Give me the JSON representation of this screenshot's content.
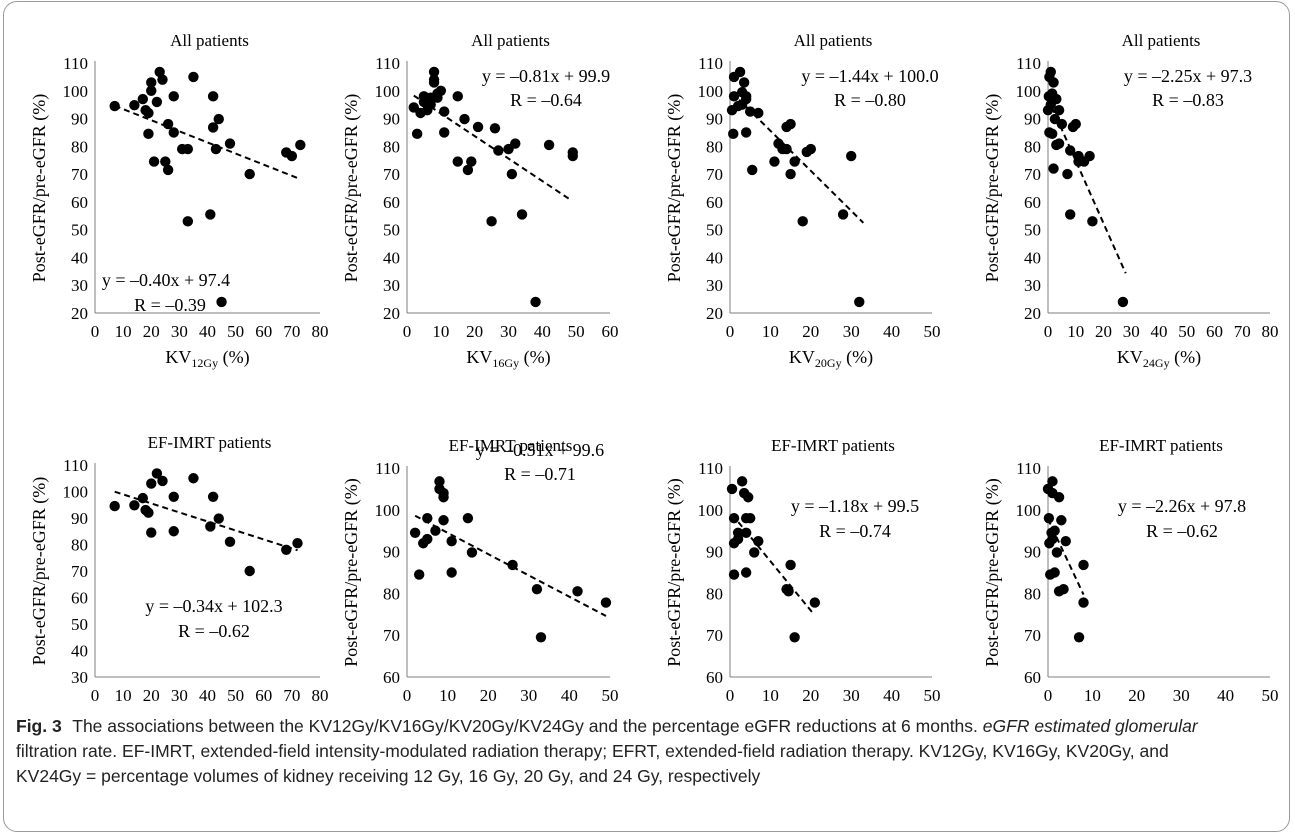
{
  "chart_data": [
    {
      "type": "scatter",
      "title": "All patients",
      "xlabel": "KV",
      "xlabel_sub": "12Gy",
      "xlabel_suffix": " (%)",
      "ylabel": "Post-eGFR/pre-eGFR (%)",
      "xlim": [
        0,
        80
      ],
      "ylim": [
        20,
        110
      ],
      "xticks": [
        0,
        10,
        20,
        30,
        40,
        50,
        60,
        70,
        80
      ],
      "yticks": [
        20,
        30,
        40,
        50,
        60,
        70,
        80,
        90,
        100,
        110
      ],
      "equation": "y = –0.40x + 97.4",
      "r_label": "R = –0.39",
      "trend": {
        "slope": -0.4,
        "intercept": 97.4,
        "x_from": 7,
        "x_to": 73
      },
      "points": [
        [
          7,
          94.5
        ],
        [
          14,
          94.8
        ],
        [
          17,
          97
        ],
        [
          18,
          93
        ],
        [
          19,
          92
        ],
        [
          19,
          84.5
        ],
        [
          20,
          100
        ],
        [
          20,
          103
        ],
        [
          21,
          74.5
        ],
        [
          22,
          96
        ],
        [
          23,
          106.8
        ],
        [
          24,
          104
        ],
        [
          25,
          74.5
        ],
        [
          26,
          71.5
        ],
        [
          26,
          88
        ],
        [
          28,
          85
        ],
        [
          28,
          98
        ],
        [
          31,
          79
        ],
        [
          33,
          53
        ],
        [
          33,
          79
        ],
        [
          35,
          105
        ],
        [
          41,
          55.5
        ],
        [
          42,
          86.8
        ],
        [
          42,
          98
        ],
        [
          43,
          79
        ],
        [
          44,
          89.8
        ],
        [
          45,
          24
        ],
        [
          48,
          81
        ],
        [
          55,
          70
        ],
        [
          68,
          77.8
        ],
        [
          70,
          76.5
        ],
        [
          73,
          80.5
        ]
      ]
    },
    {
      "type": "scatter",
      "title": "All patients",
      "xlabel": "KV",
      "xlabel_sub": "16Gy",
      "xlabel_suffix": " (%)",
      "ylabel": "Post-eGFR/pre-eGFR (%)",
      "xlim": [
        0,
        60
      ],
      "ylim": [
        20,
        110
      ],
      "xticks": [
        0,
        10,
        20,
        30,
        40,
        50,
        60
      ],
      "yticks": [
        20,
        30,
        40,
        50,
        60,
        70,
        80,
        90,
        100,
        110
      ],
      "equation": "y = –0.81x + 99.9",
      "r_label": "R = –0.64",
      "trend": {
        "slope": -0.81,
        "intercept": 99.9,
        "x_from": 2,
        "x_to": 48
      },
      "points": [
        [
          2,
          94
        ],
        [
          3,
          84.5
        ],
        [
          4,
          92
        ],
        [
          5,
          96
        ],
        [
          5,
          98
        ],
        [
          6,
          93
        ],
        [
          7,
          95
        ],
        [
          7,
          97.5
        ],
        [
          8,
          106.8
        ],
        [
          8,
          104
        ],
        [
          8,
          103
        ],
        [
          9,
          99
        ],
        [
          9,
          97.5
        ],
        [
          10,
          100
        ],
        [
          11,
          92.5
        ],
        [
          11,
          85
        ],
        [
          15,
          98
        ],
        [
          15,
          74.5
        ],
        [
          17,
          89.8
        ],
        [
          18,
          71.5
        ],
        [
          19,
          74.5
        ],
        [
          21,
          87
        ],
        [
          25,
          53
        ],
        [
          26,
          86.5
        ],
        [
          27,
          78.5
        ],
        [
          30,
          79
        ],
        [
          31,
          70
        ],
        [
          32,
          81
        ],
        [
          34,
          55.5
        ],
        [
          38,
          24
        ],
        [
          42,
          80.5
        ],
        [
          49,
          77.8
        ],
        [
          49,
          76.5
        ]
      ]
    },
    {
      "type": "scatter",
      "title": "All patients",
      "xlabel": "KV",
      "xlabel_sub": "20Gy",
      "xlabel_suffix": " (%)",
      "ylabel": "Post-eGFR/pre-eGFR (%)",
      "xlim": [
        0,
        50
      ],
      "ylim": [
        20,
        110
      ],
      "xticks": [
        0,
        10,
        20,
        30,
        40,
        50
      ],
      "yticks": [
        20,
        30,
        40,
        50,
        60,
        70,
        80,
        90,
        100,
        110
      ],
      "equation": "y = –1.44x + 100.0",
      "r_label": "R = –0.80",
      "trend": {
        "slope": -1.44,
        "intercept": 100.0,
        "x_from": 0.5,
        "x_to": 33
      },
      "points": [
        [
          0.5,
          93
        ],
        [
          0.8,
          84.5
        ],
        [
          1,
          105
        ],
        [
          1,
          98
        ],
        [
          2,
          94.5
        ],
        [
          2.5,
          106.8
        ],
        [
          3,
          95
        ],
        [
          3,
          99.5
        ],
        [
          3.5,
          103
        ],
        [
          4,
          97
        ],
        [
          4,
          85
        ],
        [
          4,
          98
        ],
        [
          5,
          92.5
        ],
        [
          5.5,
          71.5
        ],
        [
          7,
          92
        ],
        [
          11,
          74.5
        ],
        [
          12,
          81
        ],
        [
          13,
          79
        ],
        [
          14,
          87
        ],
        [
          14,
          79
        ],
        [
          15,
          88
        ],
        [
          15,
          70
        ],
        [
          16,
          74.5
        ],
        [
          18,
          53
        ],
        [
          19,
          78
        ],
        [
          20,
          79
        ],
        [
          28,
          55.5
        ],
        [
          30,
          76.5
        ],
        [
          32,
          24
        ]
      ]
    },
    {
      "type": "scatter",
      "title": "All patients",
      "xlabel": "KV",
      "xlabel_sub": "24Gy",
      "xlabel_suffix": " (%)",
      "ylabel": "Post-eGFR/pre-eGFR (%)",
      "xlim": [
        0,
        80
      ],
      "ylim": [
        20,
        110
      ],
      "xticks": [
        0,
        10,
        20,
        30,
        40,
        50,
        60,
        70,
        80
      ],
      "yticks": [
        20,
        30,
        40,
        50,
        60,
        70,
        80,
        90,
        100,
        110
      ],
      "equation": "y = –2.25x + 97.3",
      "r_label": "R = –0.83",
      "trend": {
        "slope": -2.25,
        "intercept": 97.3,
        "x_from": 0,
        "x_to": 28
      },
      "points": [
        [
          0,
          93
        ],
        [
          0.3,
          98
        ],
        [
          0.5,
          105
        ],
        [
          0.5,
          85
        ],
        [
          1,
          106.8
        ],
        [
          1,
          95
        ],
        [
          1.5,
          99
        ],
        [
          1.5,
          84.5
        ],
        [
          2,
          72
        ],
        [
          2,
          103
        ],
        [
          2.5,
          89.8
        ],
        [
          3,
          97
        ],
        [
          3,
          80.5
        ],
        [
          4,
          93
        ],
        [
          4,
          81
        ],
        [
          5,
          88
        ],
        [
          7,
          70
        ],
        [
          8,
          78.5
        ],
        [
          8,
          55.5
        ],
        [
          9,
          87
        ],
        [
          10,
          88
        ],
        [
          11,
          74.5
        ],
        [
          11,
          76.5
        ],
        [
          13,
          74.5
        ],
        [
          15,
          76.5
        ],
        [
          16,
          53
        ],
        [
          27,
          24
        ]
      ]
    },
    {
      "type": "scatter",
      "title": "EF-IMRT patients",
      "xlabel": "KV",
      "xlabel_sub": "12Gy",
      "xlabel_suffix": " (%)",
      "ylabel": "Post-eGFR/pre-eGFR (%)",
      "xlim": [
        0,
        80
      ],
      "ylim": [
        30,
        110
      ],
      "xticks": [
        0,
        10,
        20,
        30,
        40,
        50,
        60,
        70,
        80
      ],
      "yticks": [
        30,
        40,
        50,
        60,
        70,
        80,
        90,
        100,
        110
      ],
      "equation": "y = –0.34x + 102.3",
      "r_label": "R = –0.62",
      "trend": {
        "slope": -0.34,
        "intercept": 102.3,
        "x_from": 7,
        "x_to": 72
      },
      "points": [
        [
          7,
          94.5
        ],
        [
          14,
          94.8
        ],
        [
          17,
          97.5
        ],
        [
          18,
          93
        ],
        [
          19,
          92
        ],
        [
          20,
          84.5
        ],
        [
          20,
          103
        ],
        [
          22,
          106.8
        ],
        [
          24,
          104
        ],
        [
          28,
          85
        ],
        [
          28,
          98
        ],
        [
          35,
          105
        ],
        [
          41,
          86.8
        ],
        [
          42,
          98
        ],
        [
          44,
          89.8
        ],
        [
          48,
          81
        ],
        [
          55,
          70
        ],
        [
          68,
          78
        ],
        [
          72,
          80.5
        ]
      ]
    },
    {
      "type": "scatter",
      "title": "EF-IMRT patients",
      "xlabel": "KV",
      "xlabel_sub": "16Gy",
      "xlabel_suffix": " (%)",
      "ylabel": "Post-eGFR/pre-eGFR (%)",
      "xlim": [
        0,
        50
      ],
      "ylim": [
        60,
        110
      ],
      "xticks": [
        0,
        10,
        20,
        30,
        40,
        50
      ],
      "yticks": [
        60,
        70,
        80,
        90,
        100,
        110
      ],
      "equation": "y = –0.51x + 99.6",
      "r_label": "R = –0.71",
      "trend": {
        "slope": -0.51,
        "intercept": 99.6,
        "x_from": 2,
        "x_to": 49
      },
      "points": [
        [
          2,
          94.5
        ],
        [
          3,
          84.5
        ],
        [
          4,
          92
        ],
        [
          5,
          93
        ],
        [
          5,
          98
        ],
        [
          7,
          95
        ],
        [
          8,
          106.8
        ],
        [
          8,
          105
        ],
        [
          9,
          103
        ],
        [
          9,
          104
        ],
        [
          9,
          97.5
        ],
        [
          11,
          85
        ],
        [
          11,
          92.5
        ],
        [
          15,
          98
        ],
        [
          16,
          89.8
        ],
        [
          26,
          86.8
        ],
        [
          32,
          81
        ],
        [
          33,
          69.5
        ],
        [
          42,
          80.5
        ],
        [
          49,
          77.8
        ]
      ]
    },
    {
      "type": "scatter",
      "title": "EF-IMRT patients",
      "xlabel": "KV",
      "xlabel_sub": "20Gy",
      "xlabel_suffix": " (%)",
      "ylabel": "Post-eGFR/pre-eGFR (%)",
      "xlim": [
        0,
        50
      ],
      "ylim": [
        60,
        110
      ],
      "xticks": [
        0,
        10,
        20,
        30,
        40,
        50
      ],
      "yticks": [
        60,
        70,
        80,
        90,
        100,
        110
      ],
      "equation": "y = –1.18x + 99.5",
      "r_label": "R = –0.74",
      "trend": {
        "slope": -1.18,
        "intercept": 99.5,
        "x_from": 0.5,
        "x_to": 20.5
      },
      "points": [
        [
          0.5,
          105
        ],
        [
          1,
          98
        ],
        [
          1,
          92
        ],
        [
          1,
          84.5
        ],
        [
          2,
          94.5
        ],
        [
          2,
          93
        ],
        [
          3,
          106.8
        ],
        [
          3.5,
          104
        ],
        [
          4,
          98
        ],
        [
          4,
          94.5
        ],
        [
          4,
          85
        ],
        [
          4.5,
          103
        ],
        [
          5,
          98
        ],
        [
          6,
          89.8
        ],
        [
          7,
          92.5
        ],
        [
          14,
          81
        ],
        [
          14.5,
          80.5
        ],
        [
          15,
          86.8
        ],
        [
          16,
          69.5
        ],
        [
          21,
          77.8
        ]
      ]
    },
    {
      "type": "scatter",
      "title": "EF-IMRT patients",
      "xlabel": "KV",
      "xlabel_sub": "24Gy",
      "xlabel_suffix": " (%)",
      "ylabel": "Post-eGFR/pre-eGFR (%)",
      "xlim": [
        0,
        50
      ],
      "ylim": [
        60,
        110
      ],
      "xticks": [
        0,
        10,
        20,
        30,
        40,
        50
      ],
      "yticks": [
        60,
        70,
        80,
        90,
        100,
        110
      ],
      "equation": "y = –2.26x + 97.8",
      "r_label": "R = –0.62",
      "trend": {
        "slope": -2.26,
        "intercept": 97.8,
        "x_from": 0,
        "x_to": 8
      },
      "points": [
        [
          0,
          105
        ],
        [
          0.2,
          98
        ],
        [
          0.3,
          92
        ],
        [
          0.5,
          84.5
        ],
        [
          0.8,
          94.5
        ],
        [
          1,
          106.8
        ],
        [
          1,
          93
        ],
        [
          1,
          104
        ],
        [
          1.5,
          95
        ],
        [
          1.5,
          85
        ],
        [
          2,
          89.8
        ],
        [
          2.5,
          103
        ],
        [
          2.5,
          80.5
        ],
        [
          3,
          97.5
        ],
        [
          3.5,
          81
        ],
        [
          4,
          92.5
        ],
        [
          7,
          69.5
        ],
        [
          8,
          86.8
        ],
        [
          8,
          77.8
        ]
      ]
    }
  ],
  "caption": {
    "fig_label": "Fig. 3",
    "line1_text": "The associations between the KV12Gy/KV16Gy/KV20Gy/KV24Gy and the percentage eGFR reductions at 6 months.",
    "line1_tail": "eGFR estimated glomerular",
    "line2": "filtration rate. EF-IMRT, extended-field intensity-modulated radiation therapy; EFRT, extended-field radiation therapy. KV12Gy, KV16Gy, KV20Gy, and",
    "line3": "KV24Gy = percentage volumes of kidney receiving 12 Gy, 16 Gy, 20 Gy, and 24 Gy, respectively"
  }
}
